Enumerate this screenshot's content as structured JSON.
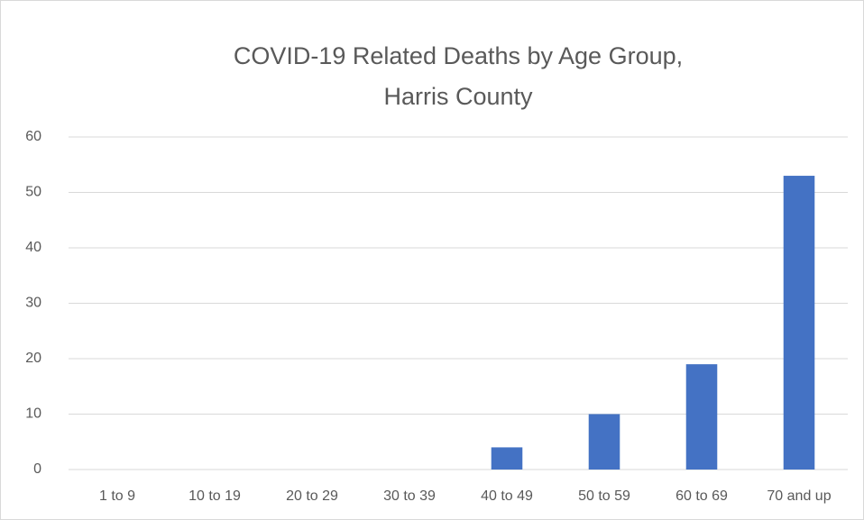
{
  "chart_data": {
    "type": "bar",
    "title": [
      "COVID-19 Related Deaths by Age Group,",
      "Harris County"
    ],
    "categories": [
      "1 to 9",
      "10 to 19",
      "20 to 29",
      "30 to 39",
      "40 to 49",
      "50 to 59",
      "60 to 69",
      "70 and up"
    ],
    "values": [
      0,
      0,
      0,
      0,
      4,
      10,
      19,
      53
    ],
    "color": "#4472c4",
    "ylim": [
      0,
      60
    ],
    "yticks": [
      0,
      10,
      20,
      30,
      40,
      50,
      60
    ],
    "grid": true
  }
}
